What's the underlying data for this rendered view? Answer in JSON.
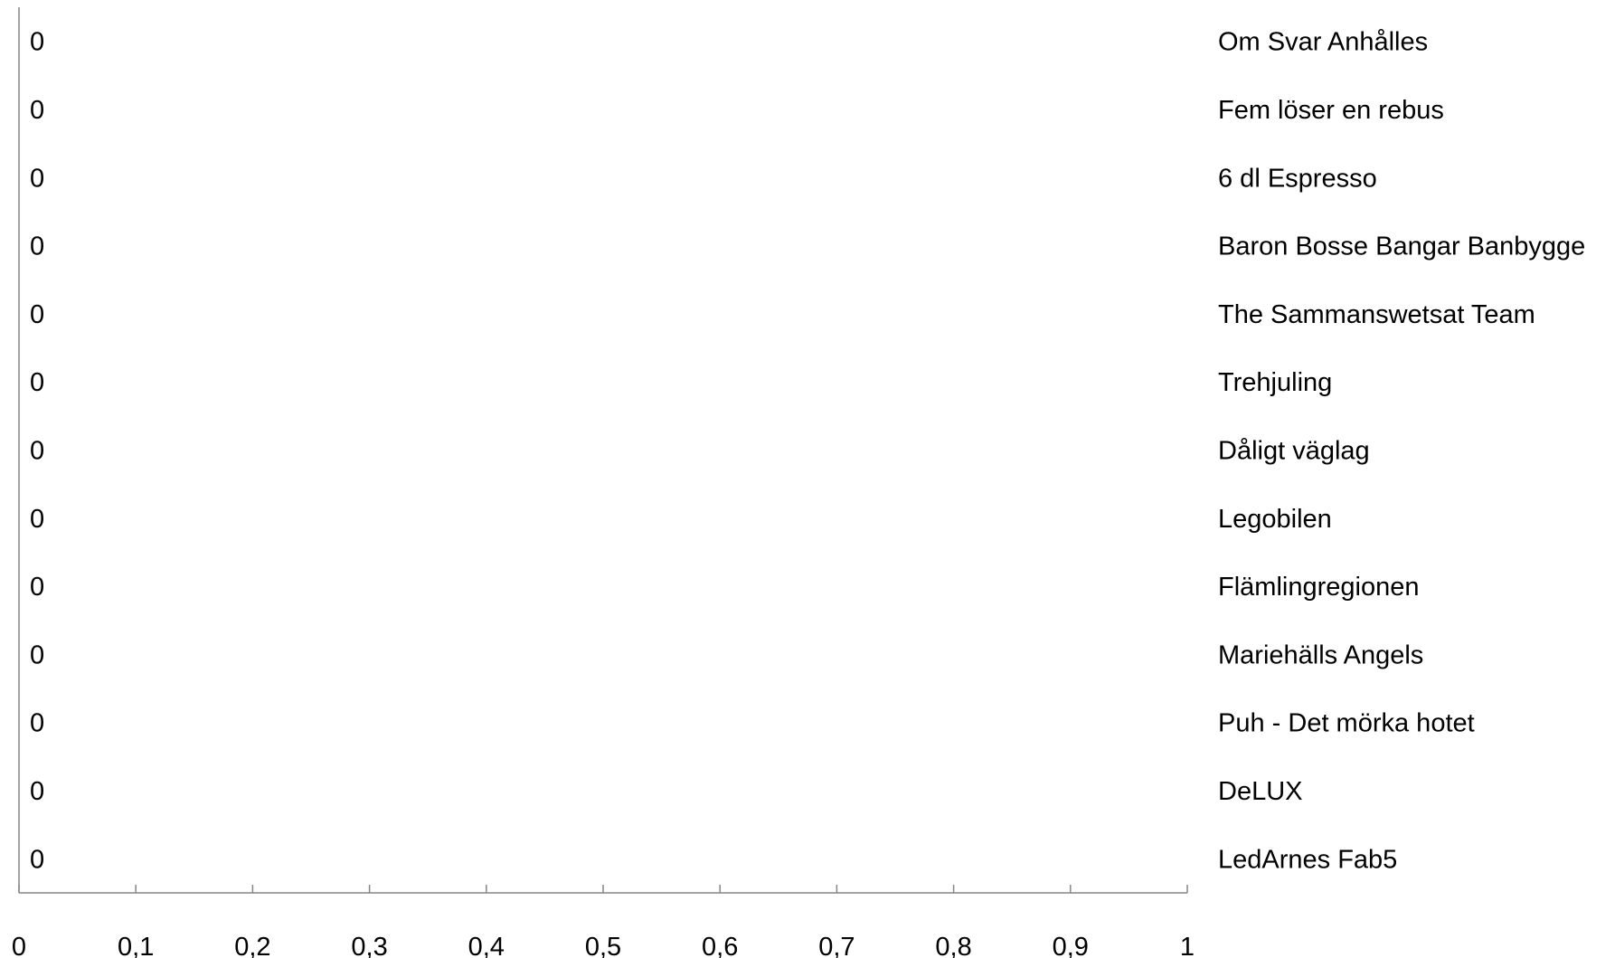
{
  "chart_data": {
    "type": "bar",
    "orientation": "horizontal",
    "categories": [
      "Om Svar Anhålles",
      "Fem löser en rebus",
      "6 dl Espresso",
      "Baron Bosse Bangar Banbygge",
      "The Sammanswetsat Team",
      "Trehjuling",
      "Dåligt väglag",
      "Legobilen",
      "Flämlingregionen",
      "Mariehälls Angels",
      "Puh - Det mörka hotet",
      "DeLUX",
      "LedArnes Fab5"
    ],
    "values": [
      0,
      0,
      0,
      0,
      0,
      0,
      0,
      0,
      0,
      0,
      0,
      0,
      0
    ],
    "data_labels": [
      "0",
      "0",
      "0",
      "0",
      "0",
      "0",
      "0",
      "0",
      "0",
      "0",
      "0",
      "0",
      "0"
    ],
    "x_ticks": [
      0,
      0.1,
      0.2,
      0.3,
      0.4,
      0.5,
      0.6,
      0.7,
      0.8,
      0.9,
      1
    ],
    "x_tick_labels": [
      "0",
      "0,1",
      "0,2",
      "0,3",
      "0,4",
      "0,5",
      "0,6",
      "0,7",
      "0,8",
      "0,9",
      "1"
    ],
    "xlim": [
      0,
      1
    ],
    "grid": false,
    "category_label_position": "right",
    "axis_color": "#868686"
  }
}
